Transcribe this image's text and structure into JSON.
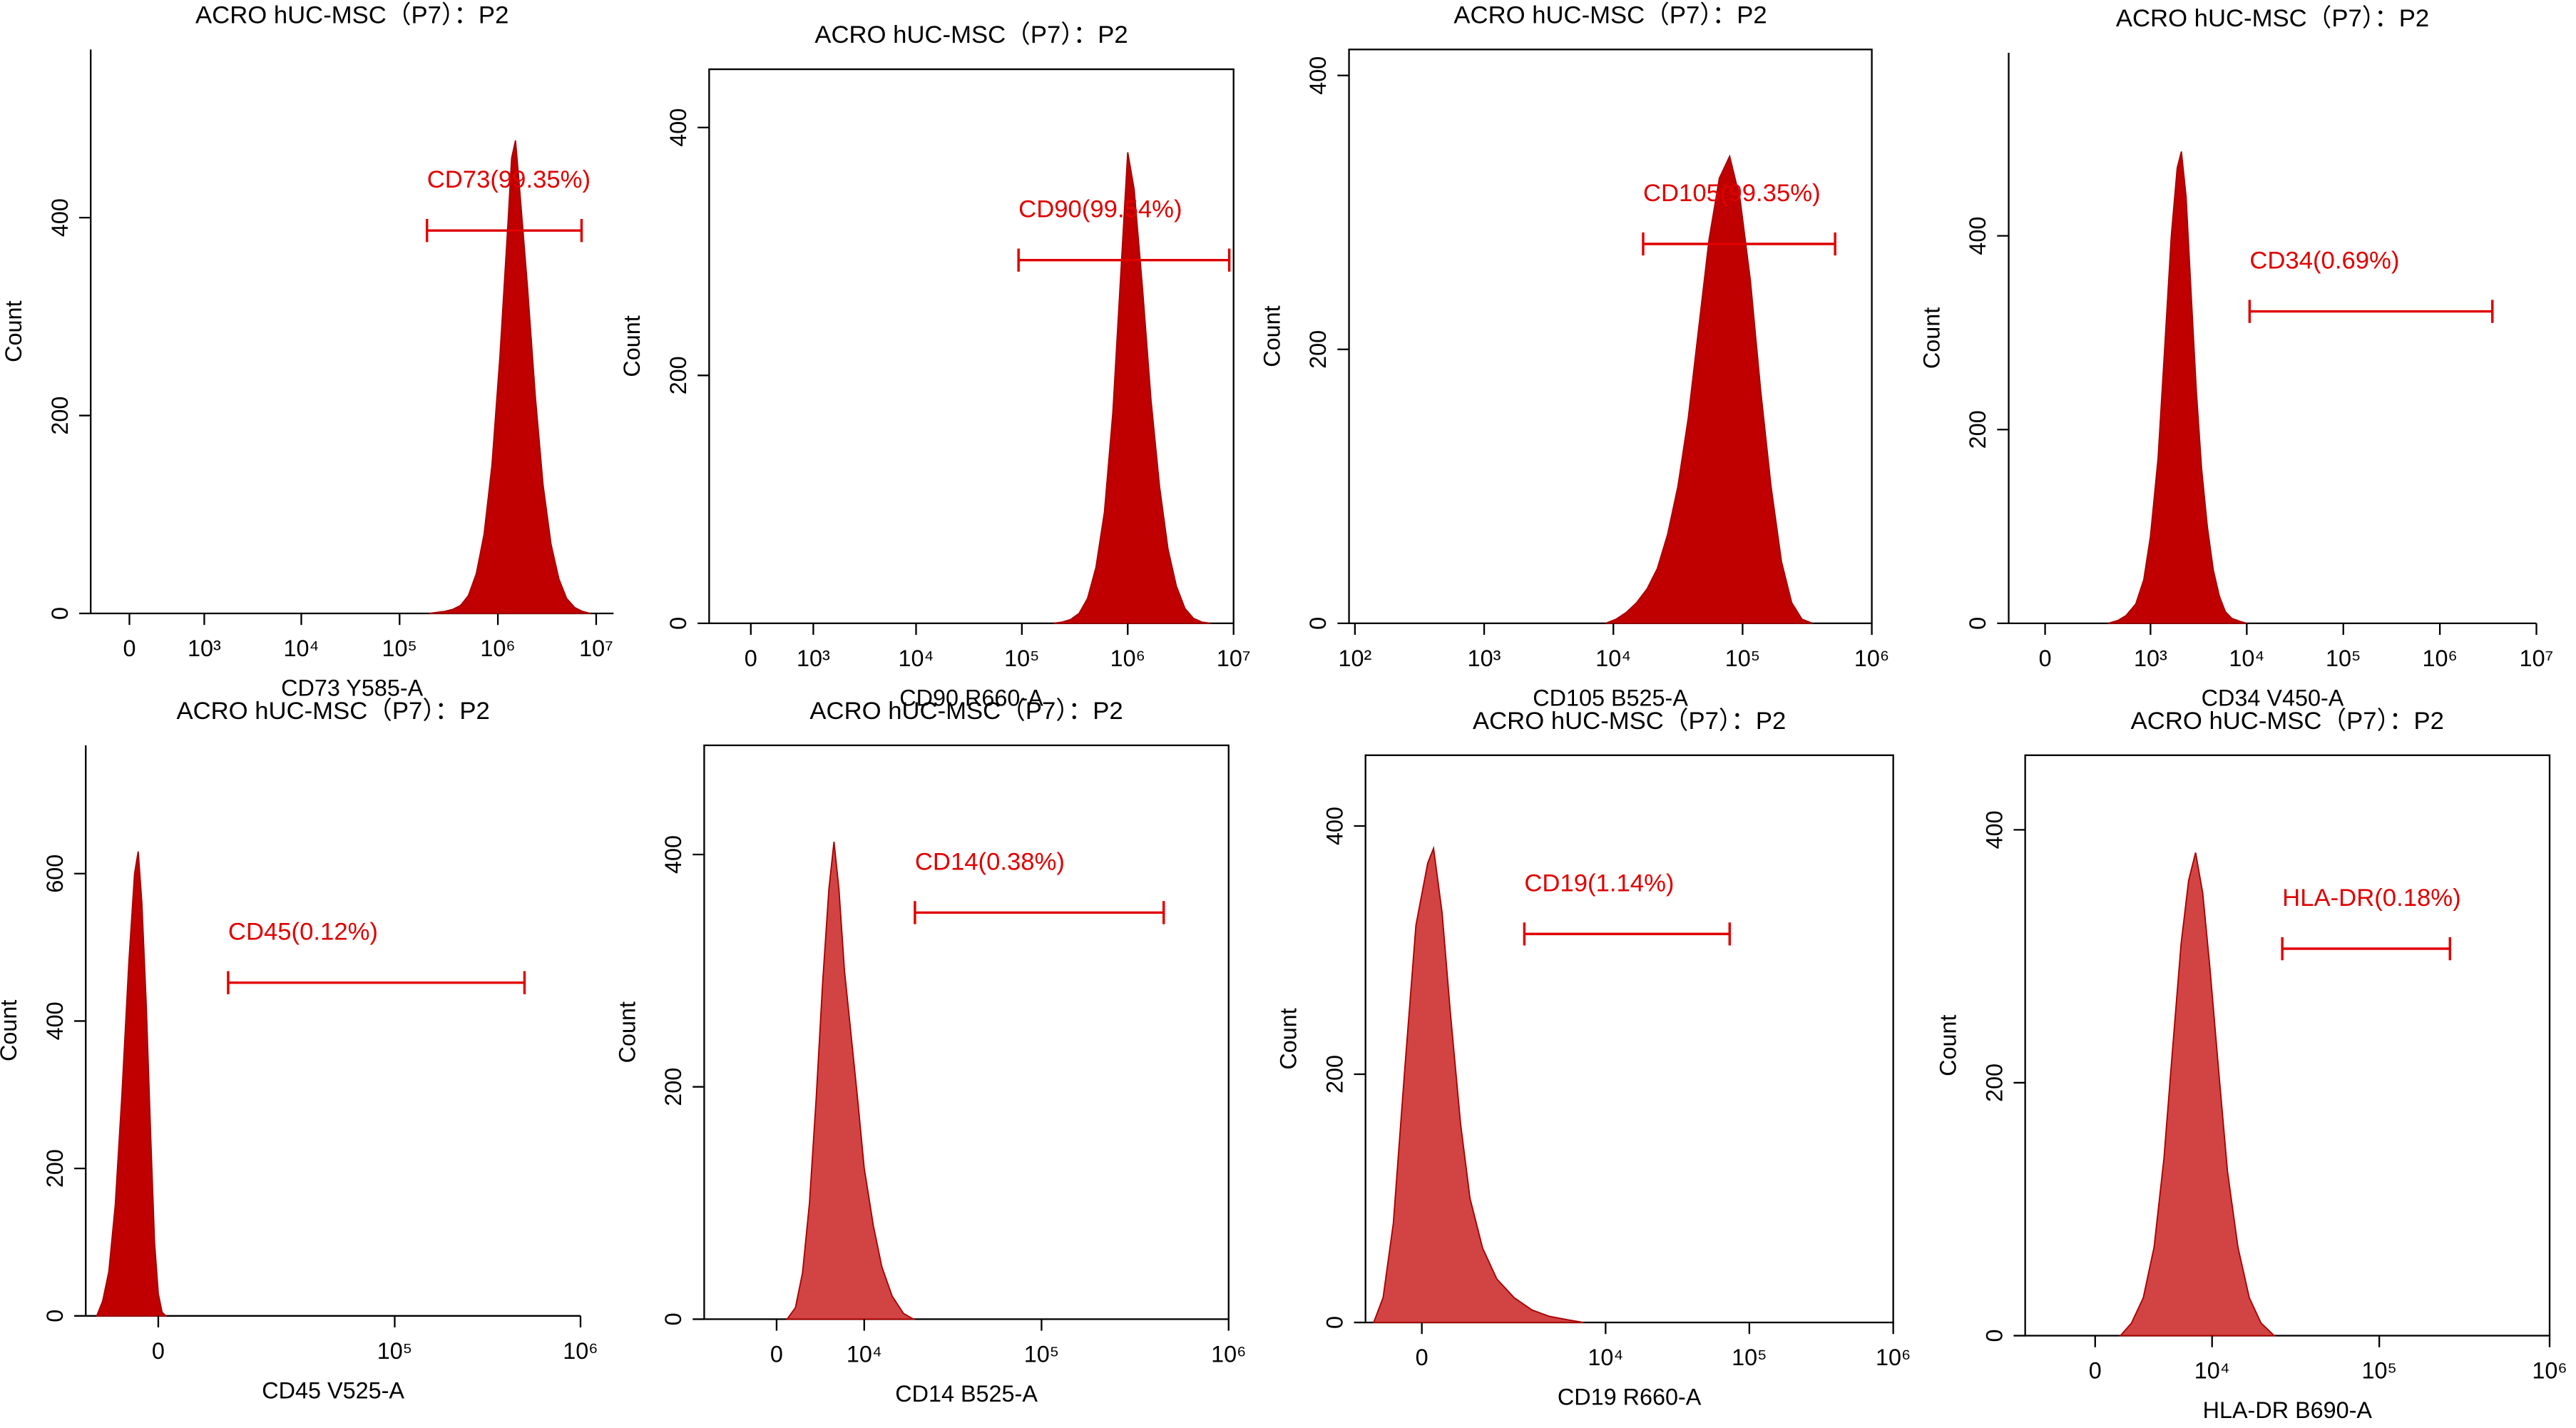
{
  "chart_data": [
    {
      "type": "area",
      "title": "ACRO hUC-MSC（P7）：P2",
      "xlabel": "CD73 Y585-A",
      "ylabel": "Count",
      "xscale": "biexponential",
      "color": "#c00000",
      "x": [
        200000.0,
        240000.0,
        288000.0,
        347000.0,
        417000.0,
        501000.0,
        603000.0,
        724000.0,
        871000.0,
        1050000.0,
        1260000.0,
        1380000.0,
        1510000.0,
        1660000.0,
        2000000.0,
        2400000.0,
        2880000.0,
        3470000.0,
        4170000.0,
        5010000.0,
        6030000.0,
        7240000.0,
        8710000.0
      ],
      "values": [
        0,
        1,
        2,
        4,
        8,
        18,
        40,
        80,
        150,
        260,
        390,
        460,
        478,
        430,
        330,
        220,
        130,
        70,
        35,
        15,
        6,
        2,
        0
      ],
      "xlim": [
        -370,
        15000000.0
      ],
      "ylim": [
        0,
        570
      ],
      "xticks": [
        0,
        {
          "value": 1000,
          "label": "10³"
        },
        {
          "value": 10000,
          "label": "10⁴"
        },
        {
          "value": 100000,
          "label": "10⁵"
        },
        {
          "value": 1000000,
          "label": "10⁶"
        },
        {
          "value": 10000000,
          "label": "10⁷"
        }
      ],
      "yticks": [
        0,
        200,
        400
      ],
      "gate": {
        "label": "CD73(99.35%)",
        "range": [
          190000.0,
          7100000.0
        ],
        "y": 387,
        "color": "#e00000"
      }
    },
    {
      "type": "area",
      "title": "ACRO hUC-MSC（P7）：P2",
      "xlabel": "CD90 R660-A",
      "ylabel": "Count",
      "xscale": "biexponential",
      "color": "#c00000",
      "x": [
        200000.0,
        240000.0,
        288000.0,
        347000.0,
        417000.0,
        501000.0,
        603000.0,
        724000.0,
        871000.0,
        1000000.0,
        1150000.0,
        1380000.0,
        1660000.0,
        2000000.0,
        2400000.0,
        2880000.0,
        3470000.0,
        4170000.0,
        5010000.0,
        6030000.0
      ],
      "values": [
        0,
        1,
        3,
        8,
        20,
        45,
        90,
        170,
        290,
        380,
        350,
        270,
        180,
        110,
        60,
        30,
        12,
        4,
        1,
        0
      ],
      "xlim": [
        -570,
        10000000.0
      ],
      "ylim": [
        0,
        447
      ],
      "xticks": [
        0,
        {
          "value": 1000,
          "label": "10³"
        },
        {
          "value": 10000,
          "label": "10⁴"
        },
        {
          "value": 100000,
          "label": "10⁵"
        },
        {
          "value": 1000000,
          "label": "10⁶"
        },
        {
          "value": 10000000,
          "label": "10⁷"
        }
      ],
      "yticks": [
        0,
        200,
        400
      ],
      "gate": {
        "label": "CD90(99.54%)",
        "range": [
          93000.0,
          9100000.0
        ],
        "y": 293,
        "color": "#e00000"
      }
    },
    {
      "type": "area",
      "title": "ACRO hUC-MSC（P7）：P2",
      "xlabel": "CD105 B525-A",
      "ylabel": "Count",
      "xscale": "log",
      "color": "#c00000",
      "x": [
        8710,
        10500,
        12600,
        15100,
        18200,
        21900,
        26300,
        31600,
        38000,
        45700,
        55000,
        66100,
        79400,
        95500,
        115000,
        138000,
        166000,
        200000,
        240000,
        288000,
        347000
      ],
      "values": [
        0,
        3,
        8,
        15,
        25,
        40,
        65,
        100,
        150,
        215,
        280,
        325,
        341,
        310,
        250,
        170,
        100,
        45,
        15,
        3,
        0
      ],
      "xlim": [
        90,
        1000000.0
      ],
      "ylim": [
        0,
        419
      ],
      "xticks": [
        {
          "value": 100,
          "label": "10²"
        },
        {
          "value": 1000,
          "label": "10³"
        },
        {
          "value": 10000,
          "label": "10⁴"
        },
        {
          "value": 100000,
          "label": "10⁵"
        },
        {
          "value": 1000000,
          "label": "10⁶"
        }
      ],
      "yticks": [
        0,
        200,
        400
      ],
      "gate": {
        "label": "CD105(99.35%)",
        "range": [
          17000.0,
          520000.0
        ],
        "y": 277,
        "color": "#e00000"
      }
    },
    {
      "type": "area",
      "title": "ACRO hUC-MSC（P7）：P2",
      "xlabel": "CD34 V450-A",
      "ylabel": "Count",
      "xscale": "biexponential",
      "color": "#c00000",
      "x": [
        350,
        450,
        550,
        700,
        850,
        1000,
        1200,
        1400,
        1650,
        1900,
        2100,
        2350,
        2650,
        3000,
        3400,
        3900,
        4500,
        5200,
        6000,
        7000,
        8500,
        10000
      ],
      "values": [
        0,
        3,
        8,
        20,
        45,
        90,
        170,
        280,
        400,
        470,
        487,
        440,
        340,
        240,
        160,
        100,
        55,
        28,
        12,
        5,
        2,
        0
      ],
      "xlim": [
        -160,
        10000000.0
      ],
      "ylim": [
        0,
        589
      ],
      "xticks": [
        0,
        {
          "value": 1000,
          "label": "10³"
        },
        {
          "value": 10000,
          "label": "10⁴"
        },
        {
          "value": 100000,
          "label": "10⁵"
        },
        {
          "value": 1000000,
          "label": "10⁶"
        },
        {
          "value": 10000000,
          "label": "10⁷"
        }
      ],
      "yticks": [
        0,
        200,
        400
      ],
      "gate": {
        "label": "CD34(0.69%)",
        "range": [
          10700.0,
          3500000.0
        ],
        "y": 322,
        "color": "#e00000"
      }
    },
    {
      "type": "area",
      "title": "ACRO hUC-MSC（P7）：P2",
      "xlabel": "CD45 V525-A",
      "ylabel": "Count",
      "xscale": "biexponential",
      "color": "#c00000",
      "x": [
        -9000,
        -8000,
        -7000,
        -6000,
        -5000,
        -4000,
        -3200,
        -2700,
        -2200,
        -1600,
        -1000,
        -500,
        0,
        500,
        1000
      ],
      "values": [
        0,
        20,
        60,
        150,
        300,
        480,
        600,
        630,
        560,
        420,
        240,
        100,
        30,
        5,
        0
      ],
      "xlim": [
        -11000,
        1000000.0
      ],
      "ylim": [
        0,
        774
      ],
      "xticks": [
        0,
        {
          "value": 100000,
          "label": "10⁵"
        },
        {
          "value": 1000000,
          "label": "10⁶"
        }
      ],
      "yticks": [
        0,
        200,
        400,
        600
      ],
      "gate": {
        "label": "CD45(0.12%)",
        "range": [
          10500,
          500000.0
        ],
        "y": 452,
        "color": "#e00000"
      }
    },
    {
      "type": "area",
      "title": "ACRO  hUC-MSC（P7）：P2",
      "xlabel": "CD14 B525-A",
      "ylabel": "Count",
      "xscale": "biexponential",
      "color": "#d24444",
      "x": [
        1000,
        1800,
        2500,
        3200,
        3900,
        4600,
        5300,
        5900,
        6500,
        7200,
        8000,
        9000,
        10000,
        11500,
        13000,
        15000,
        17500,
        20000
      ],
      "values": [
        0,
        10,
        40,
        100,
        190,
        290,
        370,
        411,
        370,
        300,
        250,
        190,
        130,
        80,
        45,
        20,
        5,
        0
      ],
      "xlim": [
        -7800,
        1000000.0
      ],
      "ylim": [
        0,
        494
      ],
      "xticks": [
        0,
        {
          "value": 10000,
          "label": "10⁴"
        },
        {
          "value": 100000,
          "label": "10⁵"
        },
        {
          "value": 1000000,
          "label": "10⁶"
        }
      ],
      "yticks": [
        0,
        200,
        400
      ],
      "gate": {
        "label": "CD14(0.38%)",
        "range": [
          20400,
          450000.0
        ],
        "y": 350,
        "color": "#e00000"
      }
    },
    {
      "type": "area",
      "title": "ACRO  hUC-MSC（P7）：P2",
      "xlabel": "CD19 R660-A",
      "ylabel": "Count",
      "xscale": "biexponential",
      "color": "#d24444",
      "x": [
        -900,
        -700,
        -500,
        -300,
        -100,
        100,
        200,
        350,
        500,
        700,
        900,
        1200,
        1600,
        2200,
        3000,
        4000,
        5500,
        7000
      ],
      "values": [
        0,
        20,
        80,
        200,
        320,
        370,
        382,
        330,
        250,
        160,
        100,
        60,
        35,
        20,
        10,
        5,
        2,
        0
      ],
      "xlim": [
        -1090,
        1000000.0
      ],
      "ylim": [
        0,
        457
      ],
      "xticks": [
        0,
        {
          "value": 10000,
          "label": "10⁴"
        },
        {
          "value": 100000,
          "label": "10⁵"
        },
        {
          "value": 1000000,
          "label": "10⁶"
        }
      ],
      "yticks": [
        0,
        200,
        400
      ],
      "gate": {
        "label": "CD19(1.14%)",
        "range": [
          2630,
          73000.0
        ],
        "y": 313,
        "color": "#e00000"
      }
    },
    {
      "type": "area",
      "title": "ACRO hUC-MSC（P7）：P2",
      "xlabel": "HLA-DR B690-A",
      "ylabel": "Count",
      "xscale": "biexponential",
      "color": "#d24444",
      "x": [
        1500,
        2200,
        3000,
        3800,
        4600,
        5400,
        6200,
        7000,
        7800,
        8700,
        9700,
        11000,
        12500,
        14500,
        17000,
        20000,
        24000
      ],
      "values": [
        0,
        10,
        30,
        70,
        140,
        230,
        310,
        360,
        382,
        350,
        290,
        210,
        130,
        70,
        30,
        10,
        0
      ],
      "xlim": [
        -4700,
        1000000.0
      ],
      "ylim": [
        0,
        459
      ],
      "xticks": [
        0,
        {
          "value": 10000,
          "label": "10⁴"
        },
        {
          "value": 100000,
          "label": "10⁵"
        },
        {
          "value": 1000000,
          "label": "10⁶"
        }
      ],
      "yticks": [
        0,
        200,
        400
      ],
      "gate": {
        "label": "HLA-DR(0.18%)",
        "range": [
          26800,
          260000.0
        ],
        "y": 306,
        "color": "#e00000"
      }
    }
  ]
}
